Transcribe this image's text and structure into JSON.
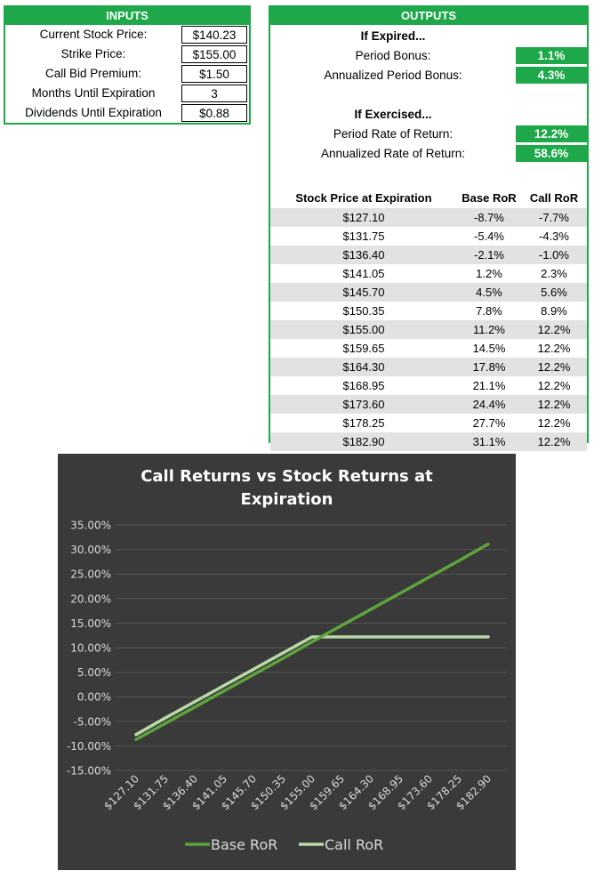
{
  "inputs": {
    "header": "INPUTS",
    "rows": [
      {
        "label": "Current Stock Price:",
        "value": "$140.23"
      },
      {
        "label": "Strike Price:",
        "value": "$155.00"
      },
      {
        "label": "Call Bid Premium:",
        "value": "$1.50"
      },
      {
        "label": "Months Until Expiration",
        "value": "3"
      },
      {
        "label": "Dividends Until Expiration",
        "value": "$0.88"
      }
    ]
  },
  "outputs": {
    "header": "OUTPUTS",
    "expired_heading": "If Expired...",
    "period_bonus_label": "Period Bonus:",
    "period_bonus_value": "1.1%",
    "annualized_bonus_label": "Annualized Period Bonus:",
    "annualized_bonus_value": "4.3%",
    "exercised_heading": "If Exercised...",
    "period_ror_label": "Period Rate of Return:",
    "period_ror_value": "12.2%",
    "annualized_ror_label": "Annualized Rate of Return:",
    "annualized_ror_value": "58.6%",
    "table_headers": [
      "Stock Price at Expiration",
      "Base RoR",
      "Call RoR"
    ],
    "table_rows": [
      [
        "$127.10",
        "-8.7%",
        "-7.7%"
      ],
      [
        "$131.75",
        "-5.4%",
        "-4.3%"
      ],
      [
        "$136.40",
        "-2.1%",
        "-1.0%"
      ],
      [
        "$141.05",
        "1.2%",
        "2.3%"
      ],
      [
        "$145.70",
        "4.5%",
        "5.6%"
      ],
      [
        "$150.35",
        "7.8%",
        "8.9%"
      ],
      [
        "$155.00",
        "11.2%",
        "12.2%"
      ],
      [
        "$159.65",
        "14.5%",
        "12.2%"
      ],
      [
        "$164.30",
        "17.8%",
        "12.2%"
      ],
      [
        "$168.95",
        "21.1%",
        "12.2%"
      ],
      [
        "$173.60",
        "24.4%",
        "12.2%"
      ],
      [
        "$178.25",
        "27.7%",
        "12.2%"
      ],
      [
        "$182.90",
        "31.1%",
        "12.2%"
      ]
    ]
  },
  "chart_data": {
    "type": "line",
    "title": "Call Returns vs Stock Returns at Expiration",
    "categories": [
      "$127.10",
      "$131.75",
      "$136.40",
      "$141.05",
      "$145.70",
      "$150.35",
      "$155.00",
      "$159.65",
      "$164.30",
      "$168.95",
      "$173.60",
      "$178.25",
      "$182.90"
    ],
    "series": [
      {
        "name": "Base RoR",
        "color": "#5ea43c",
        "values": [
          -8.7,
          -5.4,
          -2.1,
          1.2,
          4.5,
          7.8,
          11.2,
          14.5,
          17.8,
          21.1,
          24.4,
          27.7,
          31.1
        ]
      },
      {
        "name": "Call RoR",
        "color": "#b8d9a6",
        "values": [
          -7.7,
          -4.3,
          -1.0,
          2.3,
          5.6,
          8.9,
          12.2,
          12.2,
          12.2,
          12.2,
          12.2,
          12.2,
          12.2
        ]
      }
    ],
    "yticks": [
      "35.00%",
      "30.00%",
      "25.00%",
      "20.00%",
      "15.00%",
      "10.00%",
      "5.00%",
      "0.00%",
      "-5.00%",
      "-10.00%",
      "-15.00%"
    ],
    "ylim": [
      -15,
      35
    ],
    "grid": true,
    "legend": "bottom",
    "background": "#3a3a3a"
  }
}
